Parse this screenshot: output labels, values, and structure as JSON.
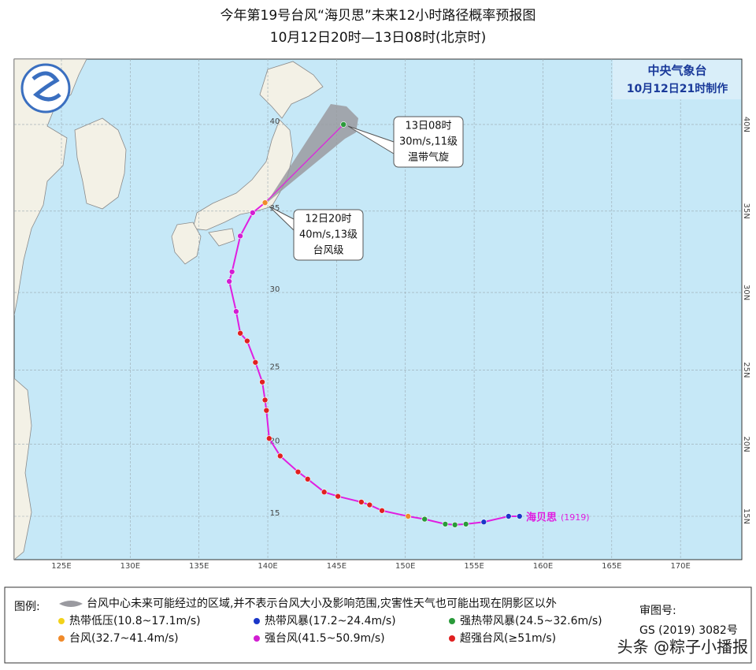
{
  "header": {
    "title": "今年第19号台风“海贝思”未来12小时路径概率预报图",
    "subtitle": "10月12日20时—13日08时(北京时)"
  },
  "agency": {
    "name": "中央气象台",
    "issued": "10月12日21时制作"
  },
  "lon_ticks": [
    {
      "value": 125,
      "label": "125E"
    },
    {
      "value": 130,
      "label": "130E"
    },
    {
      "value": 135,
      "label": "135E"
    },
    {
      "value": 140,
      "label": "140E"
    },
    {
      "value": 145,
      "label": "145E"
    },
    {
      "value": 150,
      "label": "150E"
    },
    {
      "value": 155,
      "label": "155E"
    },
    {
      "value": 160,
      "label": "160E"
    },
    {
      "value": 165,
      "label": "165E"
    },
    {
      "value": 170,
      "label": "170E"
    }
  ],
  "lat_ticks": [
    {
      "value": 40,
      "label": "40",
      "edge_label": "40N"
    },
    {
      "value": 35,
      "label": "35",
      "edge_label": "35N"
    },
    {
      "value": 30,
      "label": "30",
      "edge_label": "30N"
    },
    {
      "value": 25,
      "label": "25",
      "edge_label": "25N"
    },
    {
      "value": 20,
      "label": "20",
      "edge_label": "20N"
    },
    {
      "value": 15,
      "label": "15",
      "edge_label": "15N"
    }
  ],
  "storm": {
    "name": "海贝思",
    "number": "(1919)",
    "track_color": "#e01ee0"
  },
  "track": [
    {
      "lon": 158.3,
      "lat": 15.0,
      "level": 1
    },
    {
      "lon": 157.5,
      "lat": 15.0,
      "level": 1
    },
    {
      "lon": 155.7,
      "lat": 14.6,
      "level": 1
    },
    {
      "lon": 154.4,
      "lat": 14.45,
      "level": 2
    },
    {
      "lon": 153.6,
      "lat": 14.4,
      "level": 2
    },
    {
      "lon": 152.9,
      "lat": 14.45,
      "level": 2
    },
    {
      "lon": 151.4,
      "lat": 14.8,
      "level": 2
    },
    {
      "lon": 150.2,
      "lat": 15.0,
      "level": 3
    },
    {
      "lon": 148.3,
      "lat": 15.4,
      "level": 5
    },
    {
      "lon": 147.4,
      "lat": 15.8,
      "level": 5
    },
    {
      "lon": 146.8,
      "lat": 16.0,
      "level": 5
    },
    {
      "lon": 145.1,
      "lat": 16.4,
      "level": 5
    },
    {
      "lon": 144.1,
      "lat": 16.7,
      "level": 5
    },
    {
      "lon": 142.9,
      "lat": 17.6,
      "level": 5
    },
    {
      "lon": 142.2,
      "lat": 18.1,
      "level": 5
    },
    {
      "lon": 140.9,
      "lat": 19.2,
      "level": 5
    },
    {
      "lon": 140.1,
      "lat": 20.4,
      "level": 5
    },
    {
      "lon": 139.9,
      "lat": 22.3,
      "level": 5
    },
    {
      "lon": 139.8,
      "lat": 23.0,
      "level": 5
    },
    {
      "lon": 139.6,
      "lat": 24.2,
      "level": 5
    },
    {
      "lon": 139.1,
      "lat": 25.5,
      "level": 5
    },
    {
      "lon": 138.5,
      "lat": 26.9,
      "level": 5
    },
    {
      "lon": 138.0,
      "lat": 27.4,
      "level": 5
    },
    {
      "lon": 137.7,
      "lat": 28.8,
      "level": 4
    },
    {
      "lon": 137.2,
      "lat": 30.7,
      "level": 4
    },
    {
      "lon": 137.4,
      "lat": 31.3,
      "level": 4
    },
    {
      "lon": 138.0,
      "lat": 33.5,
      "level": 4
    },
    {
      "lon": 138.9,
      "lat": 34.9,
      "level": 4
    },
    {
      "lon": 139.8,
      "lat": 35.5,
      "level": 3
    }
  ],
  "forecast": {
    "lon": 145.5,
    "lat": 40.0,
    "level": 2
  },
  "callouts": [
    {
      "time": "13日08时",
      "intensity": "30m/s,11级",
      "class": "温带气旋"
    },
    {
      "time": "12日20时",
      "intensity": "40m/s,13级",
      "class": "台风级"
    }
  ],
  "legend": {
    "title": "图例:",
    "cone": "台风中心未来可能经过的区域,并不表示台风大小及影响范围,灾害性天气也可能出现在阴影区以外",
    "items": [
      {
        "label": "热带低压(10.8~17.1m/s)",
        "color": "#f2d21a"
      },
      {
        "label": "热带风暴(17.2~24.4m/s)",
        "color": "#1a36c8"
      },
      {
        "label": "强热带风暴(24.5~32.6m/s)",
        "color": "#2a9a3a"
      },
      {
        "label": "台风(32.7~41.4m/s)",
        "color": "#f08a2a"
      },
      {
        "label": "强台风(41.5~50.9m/s)",
        "color": "#d21ed2"
      },
      {
        "label": "超强台风(≥51m/s)",
        "color": "#e02020"
      }
    ],
    "review_label": "审图号:",
    "review_number": "GS (2019) 3082号"
  },
  "watermark": "头条 @粽子小播报"
}
